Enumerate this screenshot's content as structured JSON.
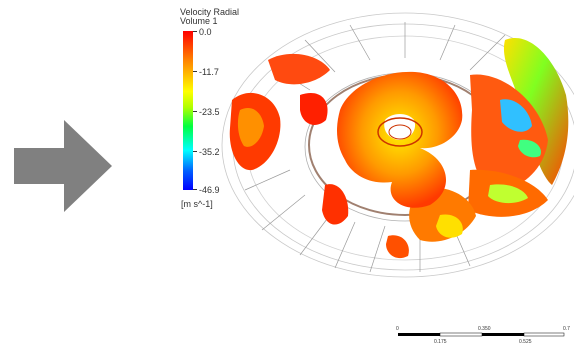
{
  "legend": {
    "title_line1": "Velocity Radial",
    "title_line2": "Volume 1",
    "ticks": [
      "0.0",
      "-11.7",
      "-23.5",
      "-35.2",
      "-46.9"
    ],
    "unit": "[m s^-1]"
  },
  "scale_bar": {
    "labels_top": [
      "0",
      "0.350",
      "0.7"
    ],
    "labels_bottom": [
      "0.175",
      "0.525"
    ]
  },
  "icons": {
    "arrow": "right-arrow-icon"
  },
  "colors": {
    "arrow": "#808080",
    "field_high": "#ff2a00",
    "field_mid": "#ffd000",
    "field_low": "#0000ff"
  }
}
